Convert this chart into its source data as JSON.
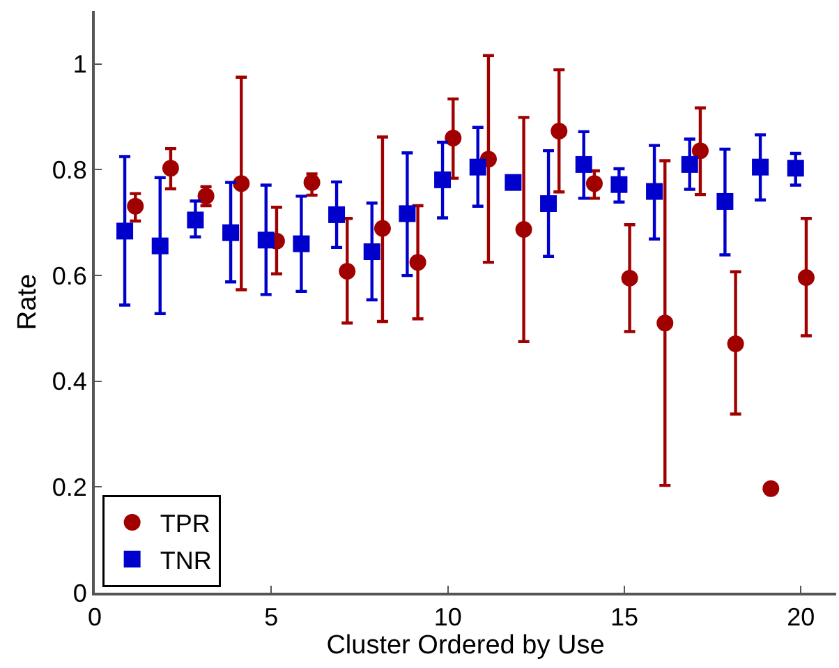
{
  "chart_data": {
    "type": "scatter",
    "xlabel": "Cluster Ordered by Use",
    "ylabel": "Rate",
    "xlim": [
      0,
      21
    ],
    "ylim": [
      0,
      1.1
    ],
    "xticks": [
      0,
      5,
      10,
      15,
      20
    ],
    "yticks": [
      0,
      0.2,
      0.4,
      0.6,
      0.8,
      1
    ],
    "legend": "bottom left",
    "series": [
      {
        "name": "TPR",
        "color": "#a00000",
        "marker": "circle",
        "x": [
          1.15,
          2.15,
          3.15,
          4.15,
          5.15,
          6.15,
          7.15,
          8.15,
          9.15,
          10.15,
          11.15,
          12.15,
          13.15,
          14.15,
          15.15,
          16.15,
          17.15,
          18.15,
          19.15,
          20.15
        ],
        "values": [
          0.731,
          0.803,
          0.75,
          0.774,
          0.665,
          0.776,
          0.608,
          0.689,
          0.625,
          0.86,
          0.82,
          0.687,
          0.873,
          0.774,
          0.595,
          0.51,
          0.836,
          0.471,
          0.197,
          0.596
        ],
        "errors": [
          [
            0.703,
            0.755
          ],
          [
            0.764,
            0.84
          ],
          [
            0.732,
            0.768
          ],
          [
            0.573,
            0.975
          ],
          [
            0.603,
            0.729
          ],
          [
            0.752,
            0.792
          ],
          [
            0.51,
            0.708
          ],
          [
            0.513,
            0.862
          ],
          [
            0.518,
            0.732
          ],
          [
            0.784,
            0.934
          ],
          [
            0.625,
            1.016
          ],
          [
            0.475,
            0.899
          ],
          [
            0.758,
            0.989
          ],
          [
            0.746,
            0.798
          ],
          [
            0.494,
            0.696
          ],
          [
            0.203,
            0.817
          ],
          [
            0.753,
            0.917
          ],
          [
            0.338,
            0.607
          ],
          null,
          [
            0.486,
            0.708
          ]
        ]
      },
      {
        "name": "TNR",
        "color": "#0000cc",
        "marker": "square",
        "x": [
          0.85,
          1.85,
          2.85,
          3.85,
          4.85,
          5.85,
          6.85,
          7.85,
          8.85,
          9.85,
          10.85,
          11.85,
          12.85,
          13.85,
          14.85,
          15.85,
          16.85,
          17.85,
          18.85,
          19.85
        ],
        "values": [
          0.684,
          0.656,
          0.705,
          0.681,
          0.667,
          0.66,
          0.715,
          0.645,
          0.717,
          0.781,
          0.805,
          0.776,
          0.736,
          0.81,
          0.772,
          0.759,
          0.81,
          0.74,
          0.805,
          0.803
        ],
        "errors": [
          [
            0.544,
            0.825
          ],
          [
            0.528,
            0.785
          ],
          [
            0.673,
            0.741
          ],
          [
            0.588,
            0.776
          ],
          [
            0.564,
            0.771
          ],
          [
            0.57,
            0.75
          ],
          [
            0.653,
            0.777
          ],
          [
            0.554,
            0.737
          ],
          [
            0.6,
            0.832
          ],
          [
            0.709,
            0.852
          ],
          [
            0.731,
            0.88
          ],
          null,
          [
            0.636,
            0.836
          ],
          [
            0.746,
            0.872
          ],
          [
            0.739,
            0.802
          ],
          [
            0.669,
            0.846
          ],
          [
            0.763,
            0.858
          ],
          [
            0.639,
            0.839
          ],
          [
            0.743,
            0.866
          ],
          [
            0.771,
            0.831
          ]
        ]
      }
    ]
  }
}
